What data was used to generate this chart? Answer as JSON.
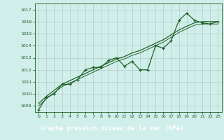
{
  "xlabel": "Graphe pression niveau de la mer (hPa)",
  "xlim": [
    -0.5,
    23.5
  ],
  "ylim": [
    1008.5,
    1017.5
  ],
  "yticks": [
    1009,
    1010,
    1011,
    1012,
    1013,
    1014,
    1015,
    1016,
    1017
  ],
  "xticks": [
    0,
    1,
    2,
    3,
    4,
    5,
    6,
    7,
    8,
    9,
    10,
    11,
    12,
    13,
    14,
    15,
    16,
    17,
    18,
    19,
    20,
    21,
    22,
    23
  ],
  "bg_color": "#d0eeea",
  "grid_color": "#b0ccc8",
  "line_color": "#1a5c20",
  "xlabel_bg": "#2d6e2d",
  "xlabel_fg": "#ffffff",
  "series1": [
    1008.7,
    1009.7,
    1010.0,
    1010.8,
    1010.8,
    1011.2,
    1012.0,
    1012.2,
    1012.2,
    1012.8,
    1013.0,
    1012.3,
    1012.7,
    1012.0,
    1012.0,
    1014.0,
    1013.8,
    1014.4,
    1016.1,
    1016.7,
    1016.1,
    1015.9,
    1015.8,
    1016.0
  ],
  "trend1": [
    1009.2,
    1009.8,
    1010.3,
    1010.8,
    1011.1,
    1011.4,
    1011.7,
    1012.0,
    1012.3,
    1012.6,
    1012.9,
    1013.1,
    1013.4,
    1013.6,
    1013.9,
    1014.2,
    1014.5,
    1014.9,
    1015.3,
    1015.6,
    1015.9,
    1016.0,
    1016.0,
    1016.0
  ],
  "trend2": [
    1009.0,
    1009.6,
    1010.1,
    1010.6,
    1010.9,
    1011.2,
    1011.5,
    1011.8,
    1012.1,
    1012.4,
    1012.7,
    1012.9,
    1013.2,
    1013.4,
    1013.7,
    1014.0,
    1014.3,
    1014.7,
    1015.1,
    1015.4,
    1015.7,
    1015.8,
    1015.8,
    1015.8
  ]
}
